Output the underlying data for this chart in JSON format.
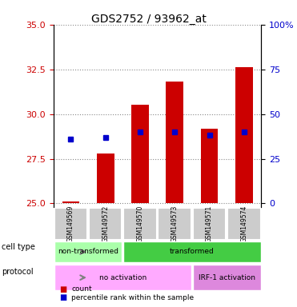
{
  "title": "GDS2752 / 93962_at",
  "samples": [
    "GSM149569",
    "GSM149572",
    "GSM149570",
    "GSM149573",
    "GSM149571",
    "GSM149574"
  ],
  "bar_bottoms": [
    25.0,
    25.0,
    25.0,
    25.0,
    25.0,
    25.0
  ],
  "bar_tops": [
    25.1,
    27.8,
    30.5,
    31.8,
    29.2,
    32.6
  ],
  "percentile_values": [
    28.6,
    28.7,
    29.0,
    29.0,
    28.8,
    29.0
  ],
  "ylim": [
    24.8,
    35.0
  ],
  "yticks_left": [
    25,
    27.5,
    30,
    32.5,
    35
  ],
  "yticks_right": [
    0,
    25,
    50,
    75,
    100
  ],
  "y_right_labels": [
    "0",
    "25",
    "50",
    "75",
    "100%"
  ],
  "bar_color": "#cc0000",
  "percentile_color": "#0000cc",
  "bg_color": "#ffffff",
  "plot_bg": "#ffffff",
  "grid_color": "#888888",
  "xlabel_color": "#cc0000",
  "ylabel_right_color": "#0000cc",
  "cell_type_groups": [
    {
      "label": "non-transformed",
      "start": 0,
      "end": 2,
      "color": "#aaffaa"
    },
    {
      "label": "transformed",
      "start": 2,
      "end": 6,
      "color": "#44cc44"
    }
  ],
  "protocol_groups": [
    {
      "label": "no activation",
      "start": 0,
      "end": 4,
      "color": "#ffaaff"
    },
    {
      "label": "IRF-1 activation",
      "start": 4,
      "end": 6,
      "color": "#dd88dd"
    }
  ],
  "legend_items": [
    {
      "label": "count",
      "color": "#cc0000"
    },
    {
      "label": "percentile rank within the sample",
      "color": "#0000cc"
    }
  ]
}
